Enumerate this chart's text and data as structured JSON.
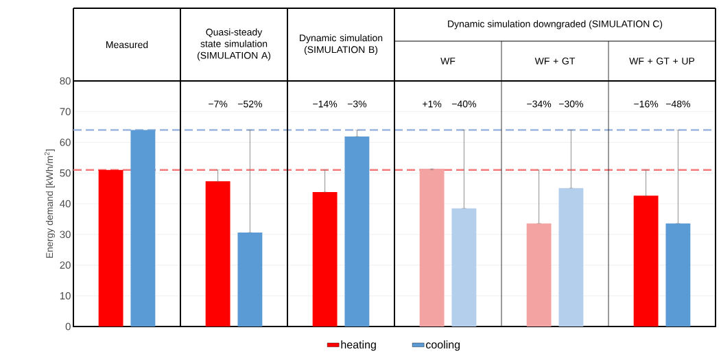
{
  "chart_data": {
    "type": "bar",
    "ylabel": "Energy demand [kWh/m$^{2}$]",
    "categories": [
      "Measured",
      "Quasi-steady state simulation (SIMULATION A)",
      "Dynamic simulation (SIMULATION B)",
      "WF",
      "WF + GT",
      "WF + GT + UP"
    ],
    "annotations": [
      "Dynamic simulation downgraded (SIMULATION C)",
      "−7%",
      "−52%",
      "−14%",
      "−3%",
      "+1%",
      "−40%",
      "−34%",
      "−30%",
      "−16%",
      "−48%"
    ],
    "series": [
      {
        "name": "heating",
        "color": "#ff0000",
        "colors": [
          "#ff0000",
          "#ff0000",
          "#ff0000",
          "#f4a3a3",
          "#f4a3a3",
          "#ff0000"
        ],
        "values": [
          51,
          47.3,
          43.8,
          51.4,
          33.6,
          42.6
        ],
        "errors": [
          null,
          [
            47.3,
            51
          ],
          [
            43.8,
            51
          ],
          [
            51,
            51.4
          ],
          [
            33.6,
            51
          ],
          [
            42.6,
            51
          ]
        ]
      },
      {
        "name": "cooling",
        "color": "#5b9bd5",
        "colors": [
          "#5b9bd5",
          "#5b9bd5",
          "#5b9bd5",
          "#b4cfec",
          "#b4cfec",
          "#5b9bd5"
        ],
        "values": [
          64,
          30.6,
          61.9,
          38.5,
          45.1,
          33.6
        ],
        "errors": [
          null,
          [
            30.6,
            64
          ],
          [
            61.9,
            64
          ],
          [
            38.5,
            64
          ],
          [
            45.1,
            64
          ],
          [
            33.6,
            64
          ]
        ]
      }
    ],
    "ylim": [
      0,
      80
    ],
    "yticks": [
      0,
      10,
      20,
      30,
      40,
      50,
      60,
      70,
      80
    ],
    "ref_lines": [
      {
        "axis": "y",
        "value": 51,
        "color": "#f47a7a",
        "line_style": "dashed"
      },
      {
        "axis": "y",
        "value": 64,
        "color": "#9bb5e0",
        "line_style": "dashed"
      }
    ],
    "grid": "y",
    "legend": "bottom"
  }
}
